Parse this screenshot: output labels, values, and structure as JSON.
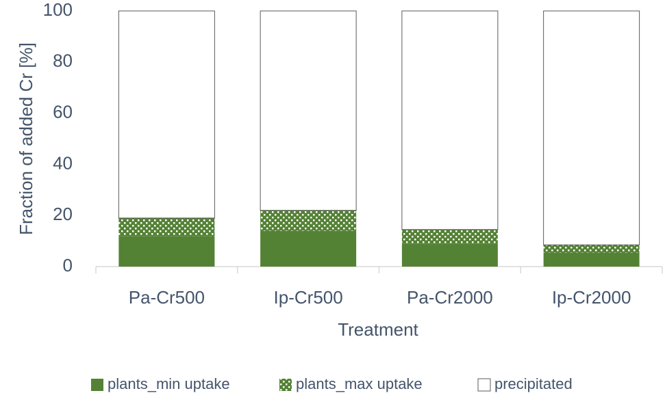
{
  "chart_data": {
    "type": "stacked_bar",
    "y_axis_label": "Fraction of added Cr [%]",
    "x_axis_label": "Treatment",
    "categories": [
      "Pa-Cr500",
      "Ip-Cr500",
      "Pa-Cr2000",
      "Ip-Cr2000"
    ],
    "series": [
      {
        "name": "plants_min uptake",
        "color": "#548235",
        "pattern": "solid",
        "values": [
          12,
          14,
          9,
          5.5
        ]
      },
      {
        "name": "plants_max uptake",
        "color": "#548235",
        "pattern": "dots",
        "values": [
          7,
          8,
          5.5,
          3
        ]
      },
      {
        "name": "precipitated",
        "color": "#ffffff",
        "pattern": "solid",
        "values": [
          81,
          78,
          85.5,
          91.5
        ]
      }
    ],
    "ylim": [
      0,
      100
    ],
    "yticks": [
      0,
      20,
      40,
      60,
      80,
      100
    ],
    "grid": false,
    "legend": "bottom"
  }
}
